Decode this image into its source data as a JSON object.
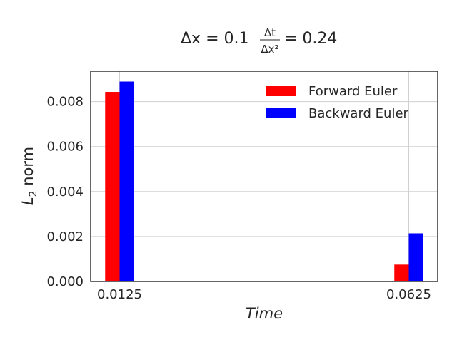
{
  "chart_data": {
    "type": "bar",
    "title": {
      "lhs": "Δx = 0.1",
      "frac_num": "Δt",
      "frac_den": "Δx²",
      "rhs": "= 0.24"
    },
    "xlabel": "Time",
    "ylabel": {
      "base": "L",
      "sub": "2",
      "rest": " norm"
    },
    "categories": [
      "0.0125",
      "0.0625"
    ],
    "series": [
      {
        "name": "Forward Euler",
        "color": "#ff0000",
        "values": [
          0.00843,
          0.00075
        ]
      },
      {
        "name": "Backward Euler",
        "color": "#0000ff",
        "values": [
          0.00889,
          0.00214
        ]
      }
    ],
    "yticks": [
      0,
      0.002,
      0.004,
      0.006,
      0.008
    ],
    "ytick_labels": [
      "0.000",
      "0.002",
      "0.004",
      "0.006",
      "0.008"
    ],
    "ylim": [
      0,
      0.00935
    ],
    "grid": true,
    "legend": "top-right"
  }
}
